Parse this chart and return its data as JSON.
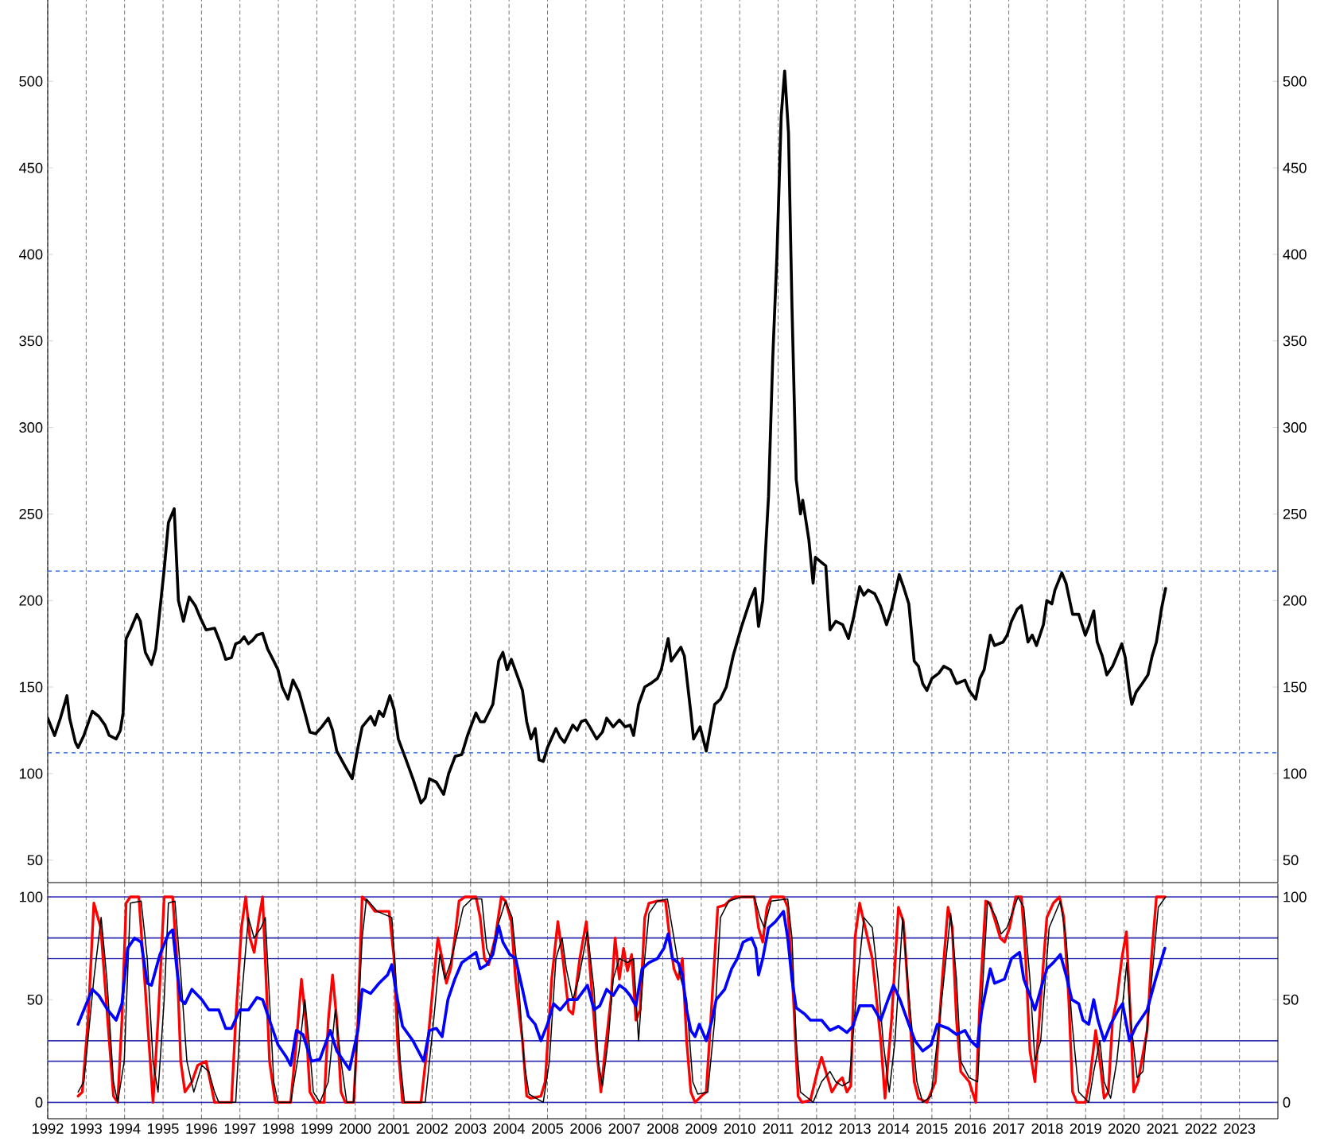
{
  "chart_data": [
    {
      "type": "line",
      "xlim": [
        1992,
        2024
      ],
      "xticks": [
        1992,
        1993,
        1994,
        1995,
        1996,
        1997,
        1998,
        1999,
        2000,
        2001,
        2002,
        2003,
        2004,
        2005,
        2006,
        2007,
        2008,
        2009,
        2010,
        2011,
        2012,
        2013,
        2014,
        2015,
        2016,
        2017,
        2018,
        2019,
        2020,
        2021,
        2022,
        2023
      ],
      "ylim": [
        37,
        547
      ],
      "yticks": [
        50,
        100,
        150,
        200,
        250,
        300,
        350,
        400,
        450,
        500
      ],
      "y2lim": [
        37,
        547
      ],
      "y2ticks": [
        50,
        100,
        150,
        200,
        250,
        300,
        350,
        400,
        450,
        500
      ],
      "grid": "x",
      "tick_labels": "y",
      "line_style": "solid",
      "marker": "none",
      "ref_lines": [
        {
          "axis": "y",
          "value": 217,
          "color": "#3a6fd8",
          "line_style": "dashed"
        },
        {
          "axis": "y",
          "value": 112,
          "color": "#3a6fd8",
          "line_style": "dashed"
        }
      ],
      "series": [
        {
          "color": "#000000",
          "x": [
            1992.0,
            1992.18,
            1992.33,
            1992.5,
            1992.57,
            1992.72,
            1992.79,
            1992.94,
            1993.16,
            1993.33,
            1993.49,
            1993.6,
            1993.78,
            1993.89,
            1993.96,
            1994.04,
            1994.15,
            1994.32,
            1994.41,
            1994.54,
            1994.7,
            1994.81,
            1994.92,
            1995.03,
            1995.14,
            1995.29,
            1995.4,
            1995.53,
            1995.68,
            1995.84,
            1995.97,
            1996.12,
            1996.34,
            1996.5,
            1996.63,
            1996.78,
            1996.89,
            1997.0,
            1997.11,
            1997.22,
            1997.33,
            1997.44,
            1997.59,
            1997.72,
            1997.88,
            1997.99,
            1998.1,
            1998.25,
            1998.38,
            1998.54,
            1998.69,
            1998.82,
            1998.97,
            1999.13,
            1999.3,
            1999.41,
            1999.52,
            1999.74,
            1999.92,
            2000.07,
            2000.18,
            2000.4,
            2000.51,
            2000.62,
            2000.73,
            2000.9,
            2001.01,
            2001.12,
            2001.32,
            2001.5,
            2001.71,
            2001.82,
            2001.93,
            2002.11,
            2002.3,
            2002.43,
            2002.6,
            2002.77,
            2002.92,
            2003.14,
            2003.25,
            2003.36,
            2003.47,
            2003.58,
            2003.73,
            2003.84,
            2003.95,
            2004.06,
            2004.24,
            2004.35,
            2004.46,
            2004.57,
            2004.68,
            2004.78,
            2004.89,
            2005.0,
            2005.22,
            2005.33,
            2005.44,
            2005.66,
            2005.77,
            2005.88,
            2005.99,
            2006.1,
            2006.28,
            2006.43,
            2006.54,
            2006.71,
            2006.87,
            2007.02,
            2007.15,
            2007.24,
            2007.37,
            2007.53,
            2007.68,
            2007.86,
            2007.96,
            2008.14,
            2008.22,
            2008.47,
            2008.56,
            2008.73,
            2008.8,
            2008.97,
            2009.13,
            2009.35,
            2009.5,
            2009.65,
            2009.83,
            2010.05,
            2010.27,
            2010.4,
            2010.49,
            2010.6,
            2010.75,
            2010.86,
            2010.97,
            2011.08,
            2011.17,
            2011.27,
            2011.36,
            2011.47,
            2011.58,
            2011.64,
            2011.8,
            2011.91,
            2011.97,
            2012.13,
            2012.24,
            2012.35,
            2012.5,
            2012.68,
            2012.83,
            2012.96,
            2013.12,
            2013.23,
            2013.34,
            2013.51,
            2013.66,
            2013.82,
            2013.95,
            2014.15,
            2014.26,
            2014.4,
            2014.54,
            2014.65,
            2014.76,
            2014.87,
            2015.0,
            2015.18,
            2015.31,
            2015.48,
            2015.64,
            2015.86,
            2015.97,
            2016.14,
            2016.25,
            2016.36,
            2016.52,
            2016.63,
            2016.85,
            2016.96,
            2017.07,
            2017.22,
            2017.33,
            2017.43,
            2017.5,
            2017.61,
            2017.72,
            2017.9,
            2017.99,
            2018.12,
            2018.2,
            2018.38,
            2018.49,
            2018.66,
            2018.82,
            2018.99,
            2019.08,
            2019.21,
            2019.3,
            2019.43,
            2019.55,
            2019.7,
            2019.85,
            2019.94,
            2020.03,
            2020.14,
            2020.2,
            2020.31,
            2020.47,
            2020.62,
            2020.73,
            2020.84,
            2020.97,
            2021.08
          ],
          "values": [
            132,
            122,
            132,
            145,
            132,
            118,
            115,
            122,
            136,
            133,
            128,
            122,
            120,
            125,
            135,
            178,
            183,
            192,
            188,
            170,
            163,
            172,
            195,
            218,
            245,
            253,
            200,
            188,
            202,
            197,
            190,
            183,
            184,
            175,
            166,
            167,
            175,
            176,
            179,
            175,
            177,
            180,
            181,
            172,
            165,
            160,
            150,
            143,
            154,
            147,
            135,
            124,
            123,
            127,
            132,
            125,
            113,
            104,
            97,
            115,
            127,
            133,
            128,
            136,
            133,
            145,
            137,
            120,
            108,
            97,
            83,
            86,
            97,
            95,
            88,
            100,
            110,
            111,
            122,
            135,
            130,
            130,
            135,
            140,
            165,
            170,
            160,
            166,
            155,
            148,
            130,
            120,
            126,
            108,
            107,
            115,
            126,
            121,
            118,
            128,
            125,
            130,
            131,
            127,
            120,
            124,
            132,
            127,
            131,
            127,
            128,
            122,
            140,
            150,
            152,
            155,
            160,
            178,
            165,
            173,
            168,
            135,
            120,
            127,
            113,
            140,
            143,
            150,
            168,
            185,
            200,
            207,
            185,
            200,
            260,
            340,
            400,
            480,
            506,
            470,
            370,
            270,
            250,
            258,
            235,
            210,
            225,
            222,
            220,
            183,
            188,
            186,
            178,
            190,
            208,
            203,
            206,
            204,
            197,
            186,
            195,
            215,
            208,
            198,
            165,
            162,
            152,
            148,
            155,
            158,
            162,
            160,
            152,
            154,
            148,
            143,
            155,
            160,
            180,
            174,
            176,
            180,
            188,
            195,
            197,
            185,
            176,
            180,
            174,
            186,
            200,
            198,
            206,
            216,
            210,
            192,
            192,
            180,
            185,
            194,
            176,
            168,
            157,
            162,
            170,
            175,
            167,
            148,
            140,
            147,
            152,
            157,
            168,
            176,
            195,
            207
          ]
        }
      ]
    },
    {
      "type": "line",
      "xlim": [
        1992,
        2024
      ],
      "xticks": [
        1992,
        1993,
        1994,
        1995,
        1996,
        1997,
        1998,
        1999,
        2000,
        2001,
        2002,
        2003,
        2004,
        2005,
        2006,
        2007,
        2008,
        2009,
        2010,
        2011,
        2012,
        2013,
        2014,
        2015,
        2016,
        2017,
        2018,
        2019,
        2020,
        2021,
        2022,
        2023
      ],
      "ylim": [
        -8,
        106.6
      ],
      "yticks": [
        0,
        50,
        100
      ],
      "y2lim": [
        -8,
        106.6
      ],
      "y2ticks": [
        0,
        50,
        100
      ],
      "grid": "x",
      "line_style": "solid",
      "marker": "none",
      "ref_lines": [
        {
          "axis": "y",
          "value": 0,
          "color": "#2e2eb0",
          "line_style": "solid"
        },
        {
          "axis": "y",
          "value": 20,
          "color": "#2e2eb0",
          "line_style": "solid"
        },
        {
          "axis": "y",
          "value": 30,
          "color": "#2e2eb0",
          "line_style": "solid"
        },
        {
          "axis": "y",
          "value": 70,
          "color": "#2e2eb0",
          "line_style": "solid"
        },
        {
          "axis": "y",
          "value": 80,
          "color": "#2e2eb0",
          "line_style": "solid"
        },
        {
          "axis": "y",
          "value": 100,
          "color": "#2e2eb0",
          "line_style": "solid"
        }
      ],
      "series": [
        {
          "color": "#ff0000",
          "x": [
            1992.79,
            1992.9,
            1993.05,
            1993.2,
            1993.38,
            1993.56,
            1993.71,
            1993.82,
            1993.93,
            1994.04,
            1994.15,
            1994.37,
            1994.52,
            1994.63,
            1994.74,
            1994.87,
            1995.03,
            1995.25,
            1995.36,
            1995.46,
            1995.57,
            1995.75,
            1995.9,
            1996.12,
            1996.23,
            1996.34,
            1996.78,
            1996.89,
            1997.04,
            1997.15,
            1997.26,
            1997.37,
            1997.5,
            1997.59,
            1997.68,
            1997.77,
            1997.92,
            1998.32,
            1998.47,
            1998.6,
            1998.71,
            1998.82,
            1998.97,
            1999.19,
            1999.3,
            1999.41,
            1999.52,
            1999.63,
            1999.74,
            1999.96,
            2000.07,
            2000.18,
            2000.36,
            2000.51,
            2000.88,
            2001.01,
            2001.1,
            2001.23,
            2001.71,
            2001.89,
            2002.04,
            2002.15,
            2002.26,
            2002.37,
            2002.48,
            2002.59,
            2002.7,
            2002.85,
            2003.14,
            2003.25,
            2003.36,
            2003.47,
            2003.64,
            2003.8,
            2003.91,
            2004.06,
            2004.17,
            2004.35,
            2004.46,
            2004.57,
            2004.83,
            2004.94,
            2005.11,
            2005.27,
            2005.4,
            2005.55,
            2005.66,
            2005.84,
            2006.01,
            2006.17,
            2006.28,
            2006.39,
            2006.5,
            2006.65,
            2006.76,
            2006.87,
            2006.98,
            2007.08,
            2007.19,
            2007.3,
            2007.41,
            2007.53,
            2007.64,
            2007.86,
            2008.07,
            2008.18,
            2008.29,
            2008.4,
            2008.51,
            2008.62,
            2008.73,
            2008.84,
            2009.0,
            2009.13,
            2009.28,
            2009.43,
            2009.61,
            2009.72,
            2009.87,
            2010.38,
            2010.49,
            2010.6,
            2010.71,
            2010.82,
            2011.14,
            2011.25,
            2011.4,
            2011.52,
            2011.62,
            2011.84,
            2012.02,
            2012.13,
            2012.24,
            2012.4,
            2012.56,
            2012.67,
            2012.79,
            2012.89,
            2013.0,
            2013.12,
            2013.23,
            2013.45,
            2013.67,
            2013.78,
            2013.95,
            2014.13,
            2014.26,
            2014.43,
            2014.54,
            2014.65,
            2014.87,
            2015.09,
            2015.27,
            2015.42,
            2015.53,
            2015.64,
            2015.75,
            2015.97,
            2016.14,
            2016.25,
            2016.4,
            2016.51,
            2016.62,
            2016.78,
            2016.89,
            2017.02,
            2017.18,
            2017.33,
            2017.44,
            2017.55,
            2017.68,
            2017.83,
            2017.99,
            2018.16,
            2018.32,
            2018.43,
            2018.56,
            2018.66,
            2018.77,
            2018.99,
            2019.1,
            2019.26,
            2019.37,
            2019.48,
            2019.59,
            2019.7,
            2019.81,
            2019.94,
            2020.06,
            2020.17,
            2020.25,
            2020.36,
            2020.6,
            2020.71,
            2020.84,
            2021.06
          ],
          "values": [
            3,
            5,
            40,
            97,
            85,
            40,
            3,
            0,
            40,
            97,
            100,
            100,
            60,
            30,
            0,
            40,
            100,
            100,
            70,
            20,
            5,
            10,
            18,
            20,
            10,
            0,
            0,
            40,
            85,
            100,
            80,
            73,
            90,
            100,
            60,
            20,
            0,
            0,
            30,
            60,
            40,
            5,
            0,
            0,
            40,
            62,
            40,
            5,
            0,
            0,
            40,
            100,
            97,
            93,
            93,
            70,
            30,
            0,
            0,
            30,
            60,
            80,
            70,
            58,
            65,
            80,
            98,
            100,
            100,
            90,
            70,
            67,
            80,
            100,
            98,
            88,
            60,
            30,
            3,
            2,
            3,
            10,
            60,
            88,
            70,
            45,
            43,
            70,
            88,
            50,
            25,
            5,
            25,
            50,
            80,
            60,
            75,
            64,
            72,
            40,
            45,
            90,
            97,
            98,
            98,
            80,
            65,
            60,
            70,
            30,
            5,
            0,
            3,
            5,
            50,
            95,
            96,
            98,
            100,
            100,
            85,
            78,
            95,
            100,
            100,
            95,
            50,
            3,
            0,
            1,
            15,
            22,
            15,
            5,
            10,
            12,
            5,
            8,
            80,
            97,
            88,
            70,
            30,
            2,
            40,
            95,
            88,
            40,
            10,
            2,
            0,
            10,
            60,
            95,
            85,
            40,
            15,
            10,
            0,
            50,
            98,
            97,
            90,
            80,
            78,
            85,
            100,
            100,
            70,
            25,
            10,
            50,
            90,
            97,
            100,
            90,
            50,
            5,
            0,
            0,
            10,
            35,
            20,
            2,
            5,
            40,
            50,
            70,
            83,
            40,
            5,
            10,
            35,
            70,
            100,
            100
          ]
        },
        {
          "color": "#000000",
          "x": [
            1992.79,
            1992.94,
            1993.2,
            1993.39,
            1993.54,
            1993.71,
            1993.82,
            1993.99,
            1994.15,
            1994.43,
            1994.59,
            1994.74,
            1994.87,
            1995.03,
            1995.14,
            1995.31,
            1995.47,
            1995.62,
            1995.8,
            1996.01,
            1996.19,
            1996.34,
            1996.45,
            1996.89,
            1997.04,
            1997.22,
            1997.37,
            1997.55,
            1997.66,
            1997.77,
            1997.88,
            1997.99,
            1998.32,
            1998.54,
            1998.69,
            1998.82,
            1998.91,
            1999.08,
            1999.3,
            1999.48,
            1999.63,
            1999.78,
            1999.96,
            2000.18,
            2000.29,
            2000.57,
            2000.95,
            2001.06,
            2001.17,
            2001.28,
            2001.82,
            2002.04,
            2002.2,
            2002.33,
            2002.48,
            2002.63,
            2002.81,
            2003.03,
            2003.29,
            2003.42,
            2003.53,
            2003.69,
            2003.91,
            2004.08,
            2004.24,
            2004.39,
            2004.52,
            2004.89,
            2005.05,
            2005.22,
            2005.38,
            2005.49,
            2005.66,
            2005.81,
            2006.04,
            2006.21,
            2006.32,
            2006.43,
            2006.58,
            2006.71,
            2006.87,
            2007.08,
            2007.24,
            2007.37,
            2007.48,
            2007.64,
            2007.86,
            2008.12,
            2008.29,
            2008.47,
            2008.62,
            2008.78,
            2008.91,
            2009.17,
            2009.35,
            2009.5,
            2009.72,
            2010.05,
            2010.38,
            2010.53,
            2010.64,
            2010.82,
            2011.25,
            2011.36,
            2011.47,
            2011.58,
            2011.91,
            2012.13,
            2012.35,
            2012.5,
            2012.67,
            2012.85,
            2013.07,
            2013.23,
            2013.45,
            2013.6,
            2013.73,
            2013.89,
            2014.04,
            2014.24,
            2014.41,
            2014.61,
            2014.76,
            2014.98,
            2015.2,
            2015.49,
            2015.64,
            2015.75,
            2015.97,
            2016.19,
            2016.3,
            2016.45,
            2016.67,
            2016.8,
            2016.95,
            2017.24,
            2017.39,
            2017.55,
            2017.68,
            2017.83,
            2018.05,
            2018.34,
            2018.49,
            2018.64,
            2018.82,
            2019.08,
            2019.21,
            2019.37,
            2019.48,
            2019.65,
            2019.81,
            2019.92,
            2020.07,
            2020.17,
            2020.34,
            2020.49,
            2020.67,
            2020.89,
            2021.08
          ],
          "values": [
            5,
            10,
            60,
            90,
            60,
            10,
            0,
            20,
            97,
            98,
            70,
            20,
            5,
            50,
            97,
            98,
            60,
            20,
            5,
            18,
            15,
            5,
            0,
            0,
            50,
            90,
            80,
            85,
            90,
            50,
            10,
            0,
            0,
            25,
            50,
            25,
            5,
            0,
            10,
            45,
            20,
            0,
            0,
            80,
            99,
            93,
            90,
            60,
            20,
            0,
            0,
            40,
            72,
            60,
            68,
            80,
            95,
            99,
            99,
            75,
            70,
            85,
            98,
            90,
            60,
            20,
            4,
            0,
            20,
            70,
            80,
            65,
            50,
            60,
            83,
            55,
            20,
            8,
            30,
            60,
            70,
            68,
            70,
            30,
            60,
            92,
            98,
            99,
            80,
            60,
            50,
            10,
            4,
            5,
            40,
            90,
            98,
            100,
            100,
            90,
            85,
            98,
            99,
            80,
            30,
            5,
            0,
            10,
            15,
            10,
            8,
            10,
            60,
            90,
            85,
            60,
            30,
            5,
            30,
            90,
            50,
            10,
            0,
            3,
            40,
            92,
            60,
            20,
            12,
            10,
            50,
            98,
            90,
            82,
            85,
            100,
            95,
            60,
            20,
            30,
            85,
            98,
            80,
            40,
            5,
            0,
            15,
            30,
            10,
            2,
            20,
            40,
            68,
            40,
            12,
            15,
            50,
            95,
            100
          ]
        },
        {
          "color": "#0000ff",
          "x": [
            1992.79,
            1992.94,
            1993.16,
            1993.33,
            1993.56,
            1993.78,
            1993.93,
            1994.08,
            1994.26,
            1994.43,
            1994.59,
            1994.7,
            1994.92,
            1995.14,
            1995.25,
            1995.36,
            1995.46,
            1995.57,
            1995.75,
            1996.01,
            1996.19,
            1996.45,
            1996.63,
            1996.78,
            1997.0,
            1997.22,
            1997.44,
            1997.59,
            1997.77,
            1997.99,
            1998.21,
            1998.32,
            1998.47,
            1998.64,
            1998.86,
            1999.08,
            1999.35,
            1999.52,
            1999.63,
            1999.85,
            2000.07,
            2000.18,
            2000.4,
            2000.62,
            2000.84,
            2000.95,
            2001.1,
            2001.23,
            2001.5,
            2001.78,
            2001.93,
            2002.11,
            2002.26,
            2002.41,
            2002.59,
            2002.77,
            2002.92,
            2003.14,
            2003.25,
            2003.42,
            2003.58,
            2003.73,
            2003.84,
            2004.02,
            2004.17,
            2004.35,
            2004.5,
            2004.68,
            2004.83,
            2005.0,
            2005.16,
            2005.33,
            2005.55,
            2005.77,
            2006.04,
            2006.21,
            2006.36,
            2006.54,
            2006.71,
            2006.87,
            2007.02,
            2007.15,
            2007.3,
            2007.46,
            2007.64,
            2007.86,
            2008.03,
            2008.14,
            2008.25,
            2008.4,
            2008.51,
            2008.62,
            2008.73,
            2008.84,
            2008.95,
            2009.13,
            2009.28,
            2009.39,
            2009.61,
            2009.79,
            2009.94,
            2010.09,
            2010.31,
            2010.42,
            2010.49,
            2010.6,
            2010.75,
            2010.93,
            2011.14,
            2011.25,
            2011.36,
            2011.47,
            2011.69,
            2011.84,
            2012.13,
            2012.35,
            2012.57,
            2012.79,
            2012.94,
            2013.12,
            2013.45,
            2013.67,
            2013.82,
            2014.0,
            2014.17,
            2014.4,
            2014.56,
            2014.76,
            2014.98,
            2015.14,
            2015.42,
            2015.64,
            2015.86,
            2016.01,
            2016.18,
            2016.3,
            2016.52,
            2016.63,
            2016.89,
            2017.07,
            2017.28,
            2017.39,
            2017.55,
            2017.68,
            2017.83,
            2017.99,
            2018.16,
            2018.34,
            2018.49,
            2018.64,
            2018.82,
            2018.93,
            2019.08,
            2019.21,
            2019.32,
            2019.48,
            2019.65,
            2019.85,
            2019.96,
            2020.14,
            2020.31,
            2020.6,
            2020.82,
            2021.06
          ],
          "values": [
            38,
            45,
            55,
            52,
            45,
            40,
            48,
            75,
            80,
            78,
            58,
            57,
            72,
            82,
            84,
            65,
            50,
            48,
            55,
            50,
            45,
            45,
            36,
            36,
            45,
            45,
            51,
            50,
            40,
            28,
            22,
            18,
            35,
            33,
            20,
            21,
            35,
            25,
            22,
            16,
            35,
            55,
            53,
            58,
            62,
            67,
            50,
            37,
            30,
            20,
            35,
            36,
            32,
            50,
            60,
            68,
            70,
            73,
            65,
            67,
            72,
            86,
            78,
            72,
            70,
            55,
            42,
            38,
            30,
            38,
            48,
            45,
            50,
            50,
            57,
            45,
            47,
            55,
            52,
            57,
            55,
            52,
            47,
            65,
            68,
            70,
            75,
            82,
            70,
            68,
            62,
            45,
            35,
            32,
            38,
            30,
            40,
            50,
            55,
            65,
            70,
            78,
            80,
            75,
            62,
            70,
            85,
            88,
            93,
            80,
            60,
            46,
            43,
            40,
            40,
            35,
            37,
            34,
            37,
            47,
            47,
            40,
            48,
            57,
            50,
            38,
            30,
            25,
            28,
            38,
            36,
            33,
            35,
            30,
            27,
            45,
            65,
            58,
            60,
            70,
            73,
            60,
            52,
            45,
            55,
            65,
            68,
            72,
            62,
            50,
            48,
            40,
            38,
            50,
            40,
            30,
            38,
            45,
            48,
            30,
            37,
            45,
            60,
            75
          ]
        }
      ]
    }
  ]
}
